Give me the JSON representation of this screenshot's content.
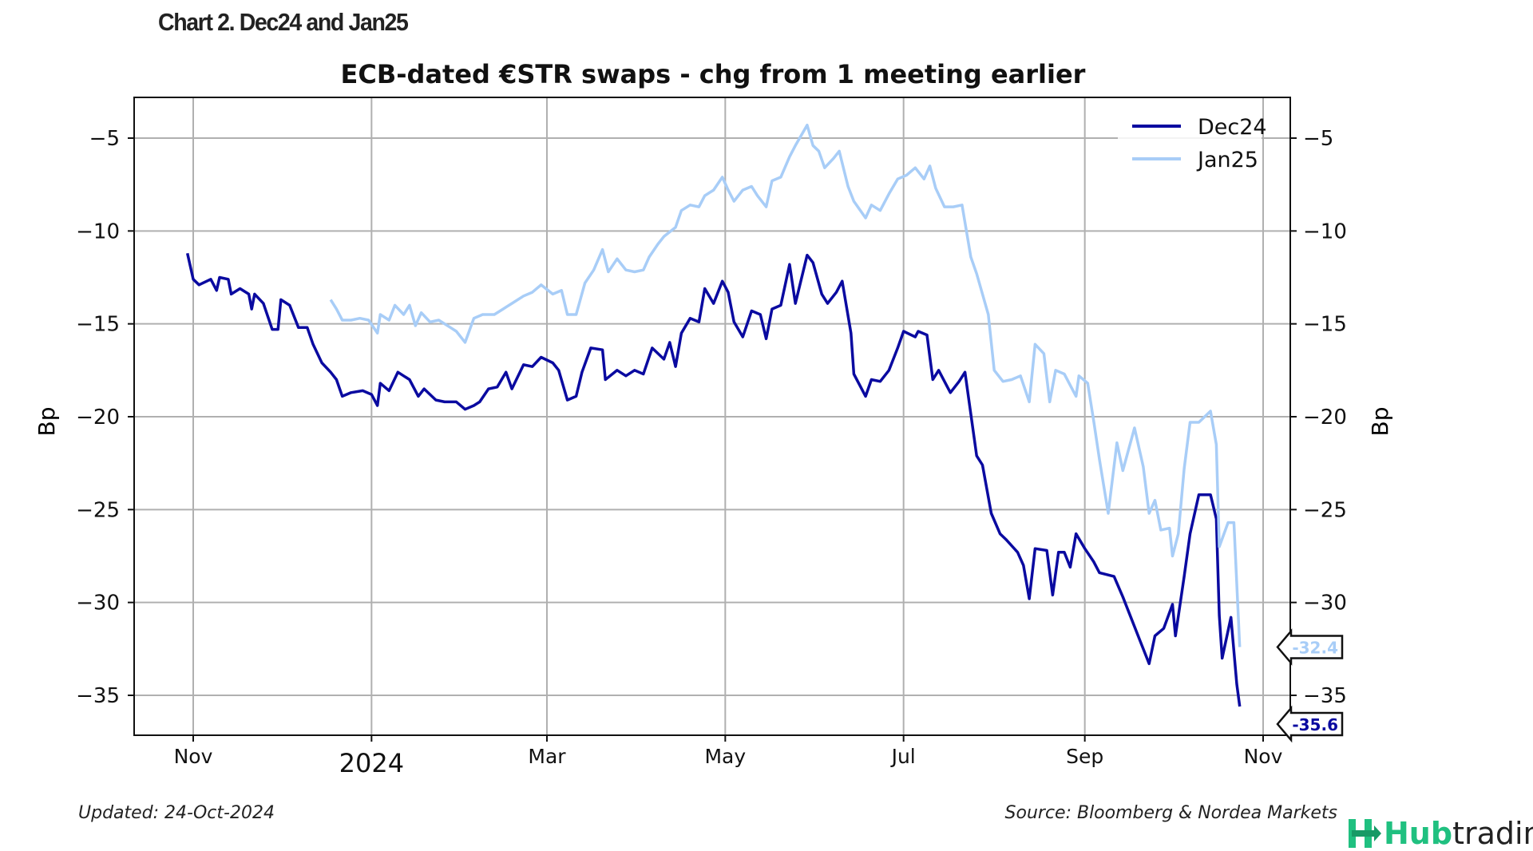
{
  "heading": "Chart 2. Dec24 and Jan25",
  "footer": {
    "updated": "Updated: 24-Oct-2024",
    "source": "Source: Bloomberg & Nordea Markets"
  },
  "logo": {
    "brand_a": "Hub",
    "brand_b": "trading"
  },
  "chart_data": {
    "type": "line",
    "title": "ECB-dated €STR swaps - chg from 1 meeting earlier",
    "ylabel": "Bp",
    "ylabel_right": "Bp",
    "x_units": "days since 2023-11-01",
    "xlim": [
      -16,
      372
    ],
    "ylim": [
      -37.2,
      -2.9
    ],
    "yticks": [
      -5,
      -10,
      -15,
      -20,
      -25,
      -30,
      -35
    ],
    "ytick_labels": [
      "−5",
      "−10",
      "−15",
      "−20",
      "−25",
      "−30",
      "−35"
    ],
    "xticks": [
      {
        "day": 0,
        "label": "Nov",
        "major": false
      },
      {
        "day": 61,
        "label": "2024",
        "major": true
      },
      {
        "day": 121,
        "label": "Mar",
        "major": false
      },
      {
        "day": 182,
        "label": "May",
        "major": false
      },
      {
        "day": 243,
        "label": "Jul",
        "major": false
      },
      {
        "day": 305,
        "label": "Sep",
        "major": false
      },
      {
        "day": 366,
        "label": "Nov",
        "major": false
      }
    ],
    "grid": true,
    "legend_position": "top-right",
    "series": [
      {
        "name": "Dec24",
        "color": "#0a0aa0",
        "last_label": "-35.6",
        "x": [
          -2,
          0,
          2,
          6,
          8,
          9,
          12,
          13,
          16,
          19,
          20,
          21,
          24,
          27,
          29,
          30,
          33,
          36,
          39,
          41,
          44,
          47,
          49,
          51,
          54,
          58,
          61,
          63,
          64,
          67,
          70,
          74,
          77,
          79,
          83,
          86,
          90,
          93,
          96,
          98,
          101,
          104,
          107,
          109,
          113,
          116,
          119,
          123,
          125,
          128,
          131,
          133,
          136,
          140,
          141,
          145,
          148,
          151,
          154,
          157,
          161,
          163,
          165,
          167,
          170,
          173,
          175,
          178,
          181,
          183,
          185,
          188,
          191,
          194,
          196,
          198,
          201,
          204,
          206,
          210,
          212,
          215,
          217,
          220,
          222,
          225,
          226,
          230,
          232,
          235,
          238,
          241,
          243,
          247,
          248,
          251,
          253,
          255,
          258,
          259,
          262,
          264,
          268,
          270,
          273,
          276,
          278,
          282,
          284,
          286,
          288,
          292,
          294,
          296,
          298,
          300,
          302,
          305,
          308,
          310,
          315,
          318,
          320,
          324,
          327,
          329,
          332,
          335,
          336,
          339,
          341,
          344,
          348,
          350,
          351,
          352,
          355,
          357,
          358
        ],
        "y": [
          -11.2,
          -12.6,
          -12.9,
          -12.6,
          -13.2,
          -12.5,
          -12.6,
          -13.4,
          -13.1,
          -13.4,
          -14.2,
          -13.4,
          -13.9,
          -15.3,
          -15.3,
          -13.7,
          -14.0,
          -15.2,
          -15.2,
          -16.1,
          -17.1,
          -17.6,
          -18.0,
          -18.9,
          -18.7,
          -18.6,
          -18.8,
          -19.4,
          -18.2,
          -18.6,
          -17.6,
          -18.0,
          -18.9,
          -18.5,
          -19.1,
          -19.2,
          -19.2,
          -19.6,
          -19.4,
          -19.2,
          -18.5,
          -18.4,
          -17.6,
          -18.5,
          -17.2,
          -17.3,
          -16.8,
          -17.1,
          -17.5,
          -19.1,
          -18.9,
          -17.6,
          -16.3,
          -16.4,
          -18.0,
          -17.5,
          -17.8,
          -17.5,
          -17.7,
          -16.3,
          -16.9,
          -16.0,
          -17.3,
          -15.5,
          -14.7,
          -14.9,
          -13.1,
          -13.9,
          -12.7,
          -13.3,
          -14.9,
          -15.7,
          -14.3,
          -14.5,
          -15.8,
          -14.2,
          -14.0,
          -11.8,
          -13.9,
          -11.3,
          -11.7,
          -13.4,
          -13.9,
          -13.3,
          -12.7,
          -15.5,
          -17.7,
          -18.9,
          -18.0,
          -18.1,
          -17.5,
          -16.3,
          -15.4,
          -15.7,
          -15.4,
          -15.6,
          -18.0,
          -17.5,
          -18.4,
          -18.7,
          -18.1,
          -17.6,
          -22.1,
          -22.6,
          -25.2,
          -26.3,
          -26.6,
          -27.3,
          -28.0,
          -29.8,
          -27.1,
          -27.2,
          -29.6,
          -27.3,
          -27.3,
          -28.1,
          -26.3,
          -27.1,
          -27.8,
          -28.4,
          -28.6,
          -29.7,
          -30.5,
          -32.1,
          -33.3,
          -31.8,
          -31.4,
          -30.1,
          -31.8,
          -28.6,
          -26.3,
          -24.2,
          -24.2,
          -25.5,
          -30.7,
          -33.0,
          -30.8,
          -34.4,
          -35.6
        ]
      },
      {
        "name": "Jan25",
        "color": "#a8cdf7",
        "last_label": "-32.4",
        "x": [
          47,
          49,
          51,
          54,
          57,
          60,
          63,
          64,
          67,
          69,
          72,
          74,
          76,
          78,
          81,
          84,
          88,
          90,
          93,
          96,
          99,
          103,
          106,
          109,
          113,
          116,
          119,
          123,
          126,
          128,
          131,
          134,
          137,
          140,
          142,
          145,
          148,
          151,
          154,
          156,
          159,
          161,
          165,
          167,
          170,
          173,
          175,
          178,
          181,
          183,
          185,
          188,
          191,
          193,
          196,
          198,
          201,
          204,
          206,
          210,
          212,
          214,
          216,
          219,
          221,
          224,
          226,
          230,
          232,
          235,
          238,
          241,
          244,
          247,
          250,
          252,
          254,
          257,
          260,
          263,
          266,
          268,
          272,
          274,
          277,
          280,
          283,
          286,
          288,
          291,
          293,
          295,
          298,
          302,
          303,
          306,
          308,
          310,
          313,
          316,
          318,
          322,
          325,
          327,
          329,
          331,
          334,
          335,
          337,
          339,
          341,
          344,
          348,
          350,
          351,
          354,
          356,
          358
        ],
        "y": [
          -13.7,
          -14.2,
          -14.8,
          -14.8,
          -14.7,
          -14.8,
          -15.5,
          -14.5,
          -14.8,
          -14.0,
          -14.5,
          -14.0,
          -15.1,
          -14.4,
          -14.9,
          -14.8,
          -15.2,
          -15.4,
          -16.0,
          -14.7,
          -14.5,
          -14.5,
          -14.2,
          -13.9,
          -13.5,
          -13.3,
          -12.9,
          -13.4,
          -13.2,
          -14.5,
          -14.5,
          -12.8,
          -12.1,
          -11.0,
          -12.2,
          -11.5,
          -12.1,
          -12.2,
          -12.1,
          -11.4,
          -10.7,
          -10.3,
          -9.8,
          -8.9,
          -8.6,
          -8.7,
          -8.1,
          -7.8,
          -7.1,
          -7.8,
          -8.4,
          -7.8,
          -7.6,
          -8.1,
          -8.7,
          -7.3,
          -7.1,
          -6.0,
          -5.4,
          -4.3,
          -5.4,
          -5.7,
          -6.6,
          -6.1,
          -5.7,
          -7.6,
          -8.4,
          -9.3,
          -8.6,
          -8.9,
          -8.0,
          -7.2,
          -7.0,
          -6.6,
          -7.2,
          -6.5,
          -7.7,
          -8.7,
          -8.7,
          -8.6,
          -11.4,
          -12.3,
          -14.5,
          -17.5,
          -18.1,
          -18.0,
          -17.8,
          -19.2,
          -16.1,
          -16.6,
          -19.2,
          -17.5,
          -17.7,
          -18.9,
          -17.8,
          -18.2,
          -20.2,
          -22.3,
          -25.2,
          -21.4,
          -22.9,
          -20.6,
          -22.7,
          -25.2,
          -24.5,
          -26.1,
          -26.0,
          -27.5,
          -26.3,
          -22.8,
          -20.3,
          -20.3,
          -19.7,
          -21.5,
          -27.0,
          -25.7,
          -25.7,
          -32.4
        ]
      }
    ]
  }
}
